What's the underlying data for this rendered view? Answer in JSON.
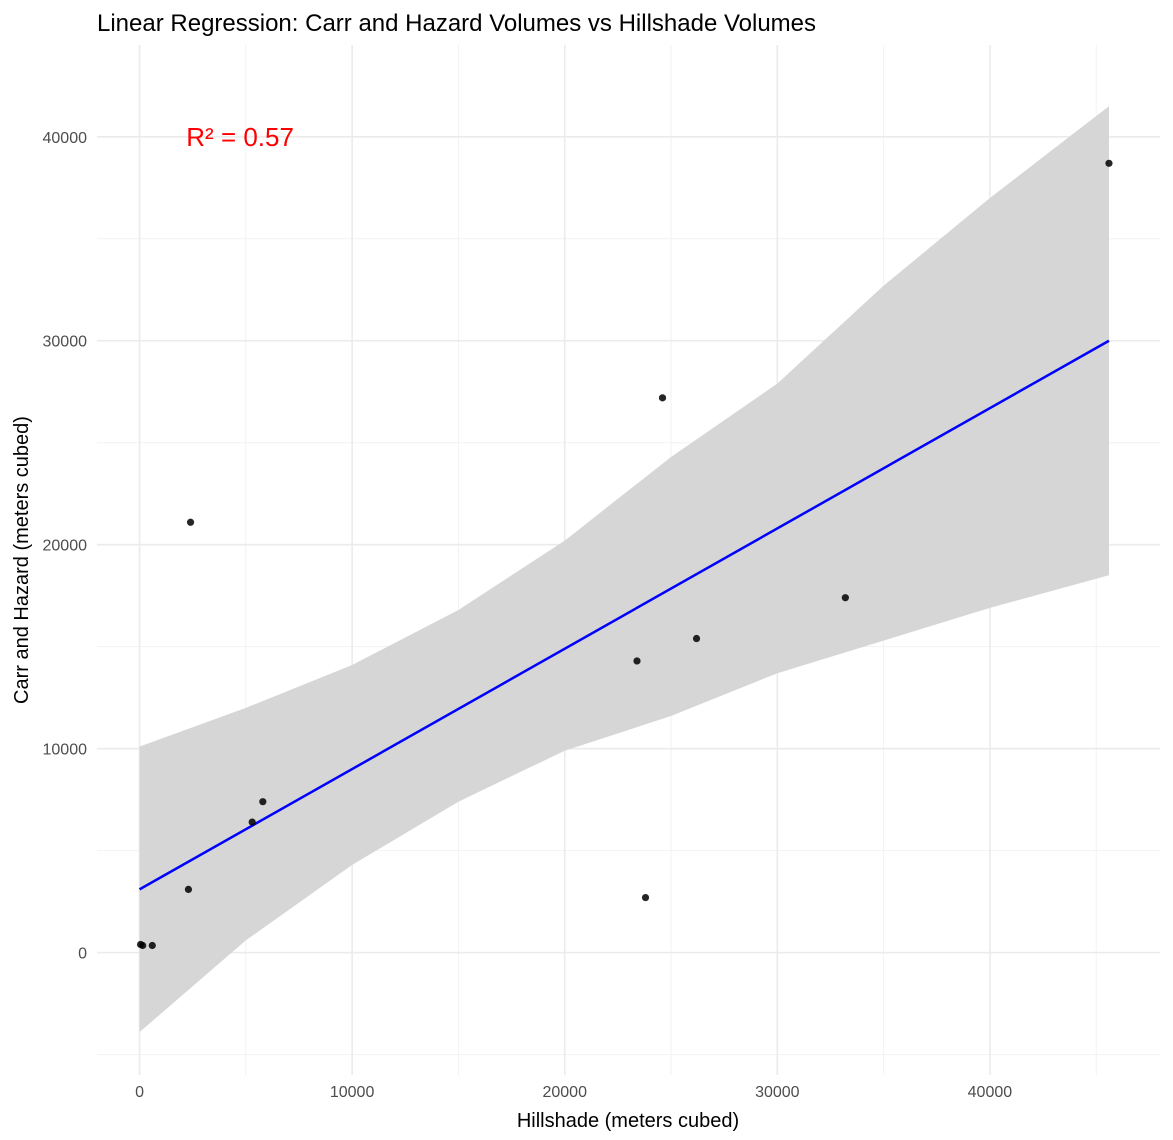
{
  "chart_data": {
    "type": "scatter",
    "title": "Linear Regression: Carr and Hazard Volumes vs Hillshade Volumes",
    "xlabel": "Hillshade (meters cubed)",
    "ylabel": "Carr and Hazard (meters cubed)",
    "xlim": [
      -2000,
      48000
    ],
    "ylim": [
      -6000,
      44500
    ],
    "x_ticks": [
      0,
      10000,
      20000,
      30000,
      40000
    ],
    "y_ticks": [
      0,
      10000,
      20000,
      30000,
      40000
    ],
    "x_tick_labels": [
      "0",
      "10000",
      "20000",
      "30000",
      "40000"
    ],
    "y_tick_labels": [
      "0",
      "10000",
      "20000",
      "30000",
      "40000"
    ],
    "grid": true,
    "points": [
      {
        "x": 50,
        "y": 400
      },
      {
        "x": 150,
        "y": 350
      },
      {
        "x": 600,
        "y": 350
      },
      {
        "x": 2300,
        "y": 3100
      },
      {
        "x": 2400,
        "y": 21100
      },
      {
        "x": 5300,
        "y": 6400
      },
      {
        "x": 5800,
        "y": 7400
      },
      {
        "x": 23400,
        "y": 14300
      },
      {
        "x": 23800,
        "y": 2700
      },
      {
        "x": 24600,
        "y": 27200
      },
      {
        "x": 26200,
        "y": 15400
      },
      {
        "x": 33200,
        "y": 17400
      },
      {
        "x": 45600,
        "y": 38700
      }
    ],
    "regression": {
      "x_range": [
        0,
        45600
      ],
      "y_at_start": 3100,
      "y_at_end": 30000,
      "line_color": "#0000ff",
      "band_color": "#d6d6d6",
      "ci_band": [
        {
          "x": 0,
          "lower": -3900,
          "upper": 10100
        },
        {
          "x": 5000,
          "lower": 600,
          "upper": 12000
        },
        {
          "x": 10000,
          "lower": 4300,
          "upper": 14100
        },
        {
          "x": 15000,
          "lower": 7400,
          "upper": 16800
        },
        {
          "x": 20000,
          "lower": 9900,
          "upper": 20200
        },
        {
          "x": 25000,
          "lower": 11600,
          "upper": 24300
        },
        {
          "x": 30000,
          "lower": 13700,
          "upper": 27900
        },
        {
          "x": 35000,
          "lower": 15300,
          "upper": 32700
        },
        {
          "x": 40000,
          "lower": 16900,
          "upper": 37000
        },
        {
          "x": 45600,
          "lower": 18500,
          "upper": 41500
        }
      ]
    },
    "annotation": {
      "text": "R² = 0.57",
      "x": 2200,
      "y": 40000,
      "color": "#ff0000"
    }
  }
}
